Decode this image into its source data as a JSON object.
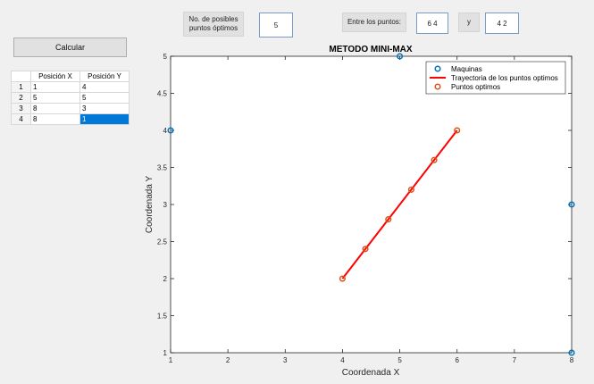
{
  "controls": {
    "posibles_label": "No. de posibles puntos óptimos",
    "posibles_value": "5",
    "entre_label": "Entre los puntos:",
    "punto1_value": "6 4",
    "y_label": "y",
    "punto2_value": "4 2",
    "calcular_label": "Calcular"
  },
  "table": {
    "headers": [
      "Posición X",
      "Posición Y"
    ],
    "rows": [
      {
        "n": "1",
        "x": "1",
        "y": "4"
      },
      {
        "n": "2",
        "x": "5",
        "y": "5"
      },
      {
        "n": "3",
        "x": "8",
        "y": "3"
      },
      {
        "n": "4",
        "x": "8",
        "y": "1"
      }
    ]
  },
  "chart_data": {
    "type": "scatter",
    "title": "METODO MINI-MAX",
    "xlabel": "Coordenada X",
    "ylabel": "Coordenada Y",
    "xlim": [
      1,
      8
    ],
    "ylim": [
      1,
      5
    ],
    "xticks": [
      "1",
      "2",
      "3",
      "4",
      "5",
      "6",
      "7",
      "8"
    ],
    "yticks": [
      "1",
      "1.5",
      "2",
      "2.5",
      "3",
      "3.5",
      "4",
      "4.5",
      "5"
    ],
    "legend_position": "top-right",
    "series": [
      {
        "name": "Maquinas",
        "kind": "marker",
        "color": "#0072bd",
        "points": [
          [
            1,
            4
          ],
          [
            5,
            5
          ],
          [
            8,
            3
          ],
          [
            8,
            1
          ]
        ]
      },
      {
        "name": "Trayectoria de los puntos optimos",
        "kind": "line",
        "color": "#ff0000",
        "points": [
          [
            4,
            2
          ],
          [
            6,
            4
          ]
        ]
      },
      {
        "name": "Puntos optimos",
        "kind": "marker",
        "color": "#d95319",
        "points": [
          [
            4,
            2
          ],
          [
            4.4,
            2.4
          ],
          [
            4.8,
            2.8
          ],
          [
            5.2,
            3.2
          ],
          [
            5.6,
            3.6
          ],
          [
            6,
            4
          ]
        ]
      }
    ]
  }
}
